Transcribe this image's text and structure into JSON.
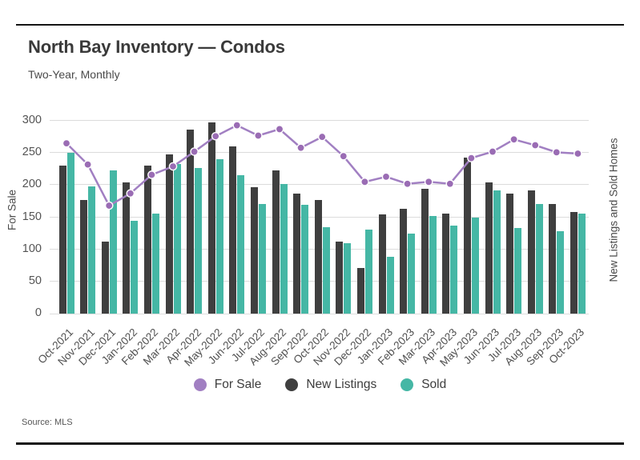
{
  "header": {
    "title": "North Bay Inventory — Condos",
    "subtitle": "Two-Year, Monthly"
  },
  "source_note": "Source: MLS",
  "colors": {
    "for_sale_line": "#a océ",
    "line": "#a17fc2",
    "marker": "#9a6cb4",
    "new_listings": "#3f3f3f",
    "sold": "#45b7a5",
    "gridline": "#dcdcdc",
    "rule": "#141414"
  },
  "legend": {
    "items": [
      {
        "label": "For Sale",
        "color": "#a17fc2"
      },
      {
        "label": "New Listings",
        "color": "#3f3f3f"
      },
      {
        "label": "Sold",
        "color": "#45b7a5"
      }
    ]
  },
  "chart_data": {
    "type": "combo: bars + line",
    "categories": [
      "Oct-2021",
      "Nov-2021",
      "Dec-2021",
      "Jan-2022",
      "Feb-2022",
      "Mar-2022",
      "Apr-2022",
      "May-2022",
      "Jun-2022",
      "Jul-2022",
      "Aug-2022",
      "Sep-2022",
      "Oct-2022",
      "Nov-2022",
      "Dec-2022",
      "Jan-2023",
      "Feb-2023",
      "Mar-2023",
      "Apr-2023",
      "May-2023",
      "Jun-2023",
      "Jul-2023",
      "Aug-2023",
      "Sep-2023",
      "Oct-2023"
    ],
    "series": [
      {
        "name": "For Sale",
        "type": "line",
        "axis": "left",
        "color": "#a17fc2",
        "values": [
          265,
          232,
          168,
          187,
          216,
          229,
          252,
          276,
          293,
          277,
          287,
          258,
          275,
          245,
          205,
          213,
          202,
          205,
          202,
          242,
          252,
          271,
          262,
          251,
          249
        ]
      },
      {
        "name": "New Listings",
        "type": "bar",
        "axis": "right",
        "color": "#3f3f3f",
        "values": [
          120,
          92,
          58,
          106,
          120,
          129,
          149,
          155,
          135,
          102,
          116,
          97,
          92,
          58,
          37,
          80,
          85,
          101,
          81,
          126,
          106,
          97,
          100,
          89,
          82
        ]
      },
      {
        "name": "Sold",
        "type": "bar",
        "axis": "right",
        "color": "#45b7a5",
        "values": [
          130,
          103,
          116,
          75,
          81,
          121,
          118,
          125,
          112,
          89,
          105,
          88,
          70,
          57,
          68,
          46,
          65,
          79,
          71,
          78,
          100,
          69,
          89,
          67,
          81
        ]
      }
    ],
    "left_axis": {
      "title": "For Sale",
      "min": 0,
      "max": 300,
      "ticks": [
        0,
        50,
        100,
        150,
        200,
        250,
        300
      ]
    },
    "right_axis": {
      "title": "New Listings and Sold Homes",
      "min": 0,
      "max": 156,
      "ticks": [
        0,
        26,
        52,
        78,
        104,
        130,
        156
      ]
    },
    "grid": true,
    "legend_position": "bottom",
    "x_labels_rotated": true
  }
}
